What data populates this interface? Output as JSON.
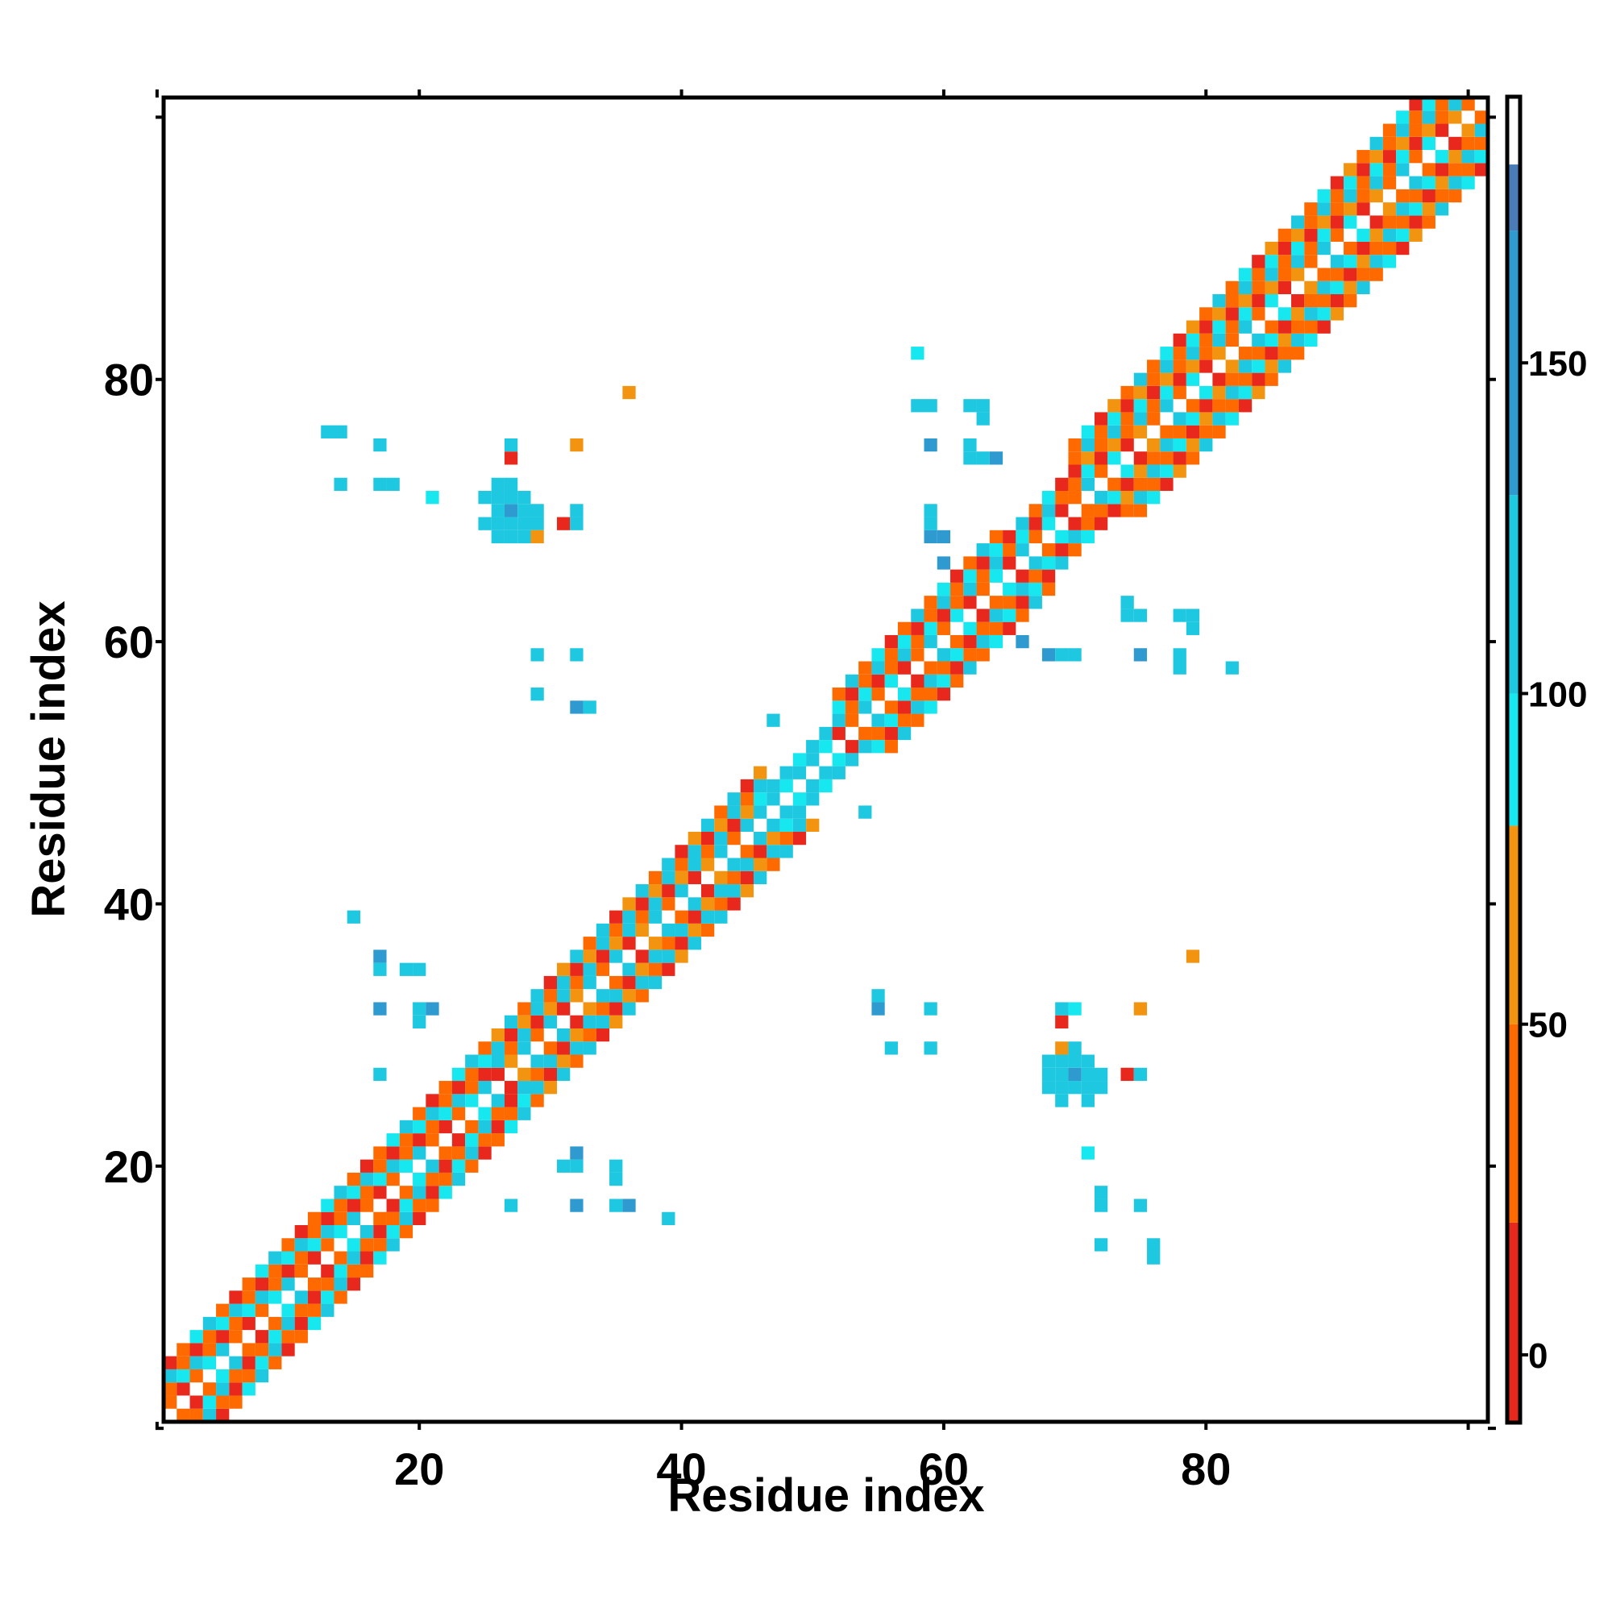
{
  "chart_data": {
    "type": "heatmap",
    "title": "",
    "xlabel": "Residue index",
    "ylabel": "Residue index",
    "xlim": [
      0.5,
      101.5
    ],
    "ylim": [
      0.5,
      101.5
    ],
    "x_ticks": [
      20,
      40,
      60,
      80
    ],
    "x_tick_labels": [
      "20",
      "40",
      "60",
      "80"
    ],
    "y_ticks": [
      20,
      40,
      60,
      80
    ],
    "y_tick_labels": [
      "20",
      "40",
      "60",
      "80"
    ],
    "colorbar": {
      "range": [
        -10,
        190
      ],
      "ticks": [
        0,
        50,
        100,
        150
      ],
      "tick_labels": [
        "0",
        "50",
        "100",
        "150"
      ],
      "bands": [
        {
          "from": -10,
          "to": 20,
          "color": "#e8281c"
        },
        {
          "from": 20,
          "to": 50,
          "color": "#ff6a00"
        },
        {
          "from": 50,
          "to": 80,
          "color": "#f39410"
        },
        {
          "from": 80,
          "to": 100,
          "color": "#17e7ee"
        },
        {
          "from": 100,
          "to": 130,
          "color": "#1ec8e0"
        },
        {
          "from": 130,
          "to": 170,
          "color": "#2f9ad0"
        },
        {
          "from": 170,
          "to": 180,
          "color": "#4a7cb8"
        },
        {
          "from": 180,
          "to": 190,
          "color": "#ffffff"
        }
      ]
    },
    "diagonal_band": {
      "description_value_pattern": "alternating helix band contact angles",
      "segments": [
        {
          "from": 1,
          "to": 26,
          "halfwidth": 4,
          "values": [
            40,
            95,
            115,
            40,
            10
          ]
        },
        {
          "from": 26,
          "to": 46,
          "halfwidth": 4,
          "values": [
            110,
            40,
            115,
            10,
            60
          ]
        },
        {
          "from": 46,
          "to": 52,
          "halfwidth": 2,
          "values": [
            110,
            115,
            95
          ]
        },
        {
          "from": 52,
          "to": 64,
          "halfwidth": 4,
          "values": [
            40,
            115,
            40,
            95,
            10
          ]
        },
        {
          "from": 64,
          "to": 70,
          "halfwidth": 3,
          "values": [
            110,
            40,
            95,
            10
          ]
        },
        {
          "from": 70,
          "to": 101,
          "halfwidth": 5,
          "values": [
            40,
            110,
            40,
            95,
            10,
            60
          ]
        }
      ]
    },
    "off_diagonal_contacts": [
      {
        "x": 26,
        "y": 70,
        "v": 110
      },
      {
        "x": 27,
        "y": 70,
        "v": 150
      },
      {
        "x": 28,
        "y": 70,
        "v": 110
      },
      {
        "x": 25,
        "y": 71,
        "v": 110
      },
      {
        "x": 26,
        "y": 71,
        "v": 110
      },
      {
        "x": 27,
        "y": 71,
        "v": 110
      },
      {
        "x": 28,
        "y": 71,
        "v": 110
      },
      {
        "x": 29,
        "y": 70,
        "v": 110
      },
      {
        "x": 25,
        "y": 69,
        "v": 110
      },
      {
        "x": 26,
        "y": 69,
        "v": 110
      },
      {
        "x": 27,
        "y": 69,
        "v": 110
      },
      {
        "x": 28,
        "y": 69,
        "v": 110
      },
      {
        "x": 29,
        "y": 69,
        "v": 110
      },
      {
        "x": 26,
        "y": 68,
        "v": 110
      },
      {
        "x": 27,
        "y": 68,
        "v": 110
      },
      {
        "x": 28,
        "y": 68,
        "v": 110
      },
      {
        "x": 29,
        "y": 68,
        "v": 60
      },
      {
        "x": 26,
        "y": 72,
        "v": 110
      },
      {
        "x": 27,
        "y": 72,
        "v": 110
      },
      {
        "x": 27,
        "y": 74,
        "v": 10
      },
      {
        "x": 27,
        "y": 75,
        "v": 110
      },
      {
        "x": 32,
        "y": 75,
        "v": 60
      },
      {
        "x": 31,
        "y": 69,
        "v": 10
      },
      {
        "x": 32,
        "y": 69,
        "v": 110
      },
      {
        "x": 32,
        "y": 70,
        "v": 110
      },
      {
        "x": 36,
        "y": 79,
        "v": 60
      },
      {
        "x": 13,
        "y": 76,
        "v": 110
      },
      {
        "x": 14,
        "y": 76,
        "v": 110
      },
      {
        "x": 17,
        "y": 75,
        "v": 110
      },
      {
        "x": 14,
        "y": 72,
        "v": 110
      },
      {
        "x": 17,
        "y": 72,
        "v": 110
      },
      {
        "x": 18,
        "y": 72,
        "v": 110
      },
      {
        "x": 21,
        "y": 71,
        "v": 95
      },
      {
        "x": 29,
        "y": 59,
        "v": 110
      },
      {
        "x": 32,
        "y": 59,
        "v": 110
      },
      {
        "x": 29,
        "y": 56,
        "v": 110
      },
      {
        "x": 32,
        "y": 55,
        "v": 150
      },
      {
        "x": 33,
        "y": 55,
        "v": 110
      },
      {
        "x": 70,
        "y": 26,
        "v": 110
      },
      {
        "x": 70,
        "y": 27,
        "v": 150
      },
      {
        "x": 70,
        "y": 28,
        "v": 110
      },
      {
        "x": 71,
        "y": 25,
        "v": 110
      },
      {
        "x": 71,
        "y": 26,
        "v": 110
      },
      {
        "x": 71,
        "y": 27,
        "v": 110
      },
      {
        "x": 71,
        "y": 28,
        "v": 110
      },
      {
        "x": 70,
        "y": 29,
        "v": 110
      },
      {
        "x": 69,
        "y": 25,
        "v": 110
      },
      {
        "x": 69,
        "y": 26,
        "v": 110
      },
      {
        "x": 69,
        "y": 27,
        "v": 110
      },
      {
        "x": 69,
        "y": 28,
        "v": 110
      },
      {
        "x": 69,
        "y": 29,
        "v": 60
      },
      {
        "x": 68,
        "y": 26,
        "v": 110
      },
      {
        "x": 68,
        "y": 27,
        "v": 110
      },
      {
        "x": 68,
        "y": 28,
        "v": 110
      },
      {
        "x": 72,
        "y": 26,
        "v": 110
      },
      {
        "x": 72,
        "y": 27,
        "v": 110
      },
      {
        "x": 74,
        "y": 27,
        "v": 10
      },
      {
        "x": 75,
        "y": 27,
        "v": 110
      },
      {
        "x": 75,
        "y": 32,
        "v": 60
      },
      {
        "x": 69,
        "y": 31,
        "v": 10
      },
      {
        "x": 69,
        "y": 32,
        "v": 110
      },
      {
        "x": 70,
        "y": 32,
        "v": 95
      },
      {
        "x": 79,
        "y": 36,
        "v": 60
      },
      {
        "x": 71,
        "y": 21,
        "v": 95
      },
      {
        "x": 72,
        "y": 18,
        "v": 110
      },
      {
        "x": 72,
        "y": 17,
        "v": 110
      },
      {
        "x": 75,
        "y": 17,
        "v": 110
      },
      {
        "x": 72,
        "y": 14,
        "v": 110
      },
      {
        "x": 76,
        "y": 14,
        "v": 110
      },
      {
        "x": 76,
        "y": 13,
        "v": 110
      },
      {
        "x": 15,
        "y": 39,
        "v": 110
      },
      {
        "x": 17,
        "y": 36,
        "v": 150
      },
      {
        "x": 17,
        "y": 35,
        "v": 110
      },
      {
        "x": 19,
        "y": 35,
        "v": 110
      },
      {
        "x": 20,
        "y": 35,
        "v": 110
      },
      {
        "x": 17,
        "y": 32,
        "v": 150
      },
      {
        "x": 20,
        "y": 32,
        "v": 110
      },
      {
        "x": 21,
        "y": 32,
        "v": 150
      },
      {
        "x": 20,
        "y": 31,
        "v": 110
      },
      {
        "x": 17,
        "y": 27,
        "v": 110
      },
      {
        "x": 27,
        "y": 17,
        "v": 110
      },
      {
        "x": 31,
        "y": 20,
        "v": 110
      },
      {
        "x": 32,
        "y": 20,
        "v": 110
      },
      {
        "x": 32,
        "y": 21,
        "v": 150
      },
      {
        "x": 35,
        "y": 19,
        "v": 110
      },
      {
        "x": 35,
        "y": 20,
        "v": 110
      },
      {
        "x": 32,
        "y": 17,
        "v": 150
      },
      {
        "x": 35,
        "y": 17,
        "v": 110
      },
      {
        "x": 36,
        "y": 17,
        "v": 150
      },
      {
        "x": 39,
        "y": 16,
        "v": 110
      },
      {
        "x": 55,
        "y": 33,
        "v": 110
      },
      {
        "x": 55,
        "y": 32,
        "v": 150
      },
      {
        "x": 59,
        "y": 32,
        "v": 110
      },
      {
        "x": 56,
        "y": 29,
        "v": 110
      },
      {
        "x": 59,
        "y": 29,
        "v": 110
      },
      {
        "x": 58,
        "y": 82,
        "v": 95
      },
      {
        "x": 58,
        "y": 78,
        "v": 110
      },
      {
        "x": 59,
        "y": 78,
        "v": 110
      },
      {
        "x": 62,
        "y": 78,
        "v": 110
      },
      {
        "x": 63,
        "y": 78,
        "v": 110
      },
      {
        "x": 63,
        "y": 77,
        "v": 110
      },
      {
        "x": 59,
        "y": 75,
        "v": 150
      },
      {
        "x": 62,
        "y": 75,
        "v": 110
      },
      {
        "x": 62,
        "y": 74,
        "v": 110
      },
      {
        "x": 63,
        "y": 74,
        "v": 110
      },
      {
        "x": 64,
        "y": 74,
        "v": 150
      },
      {
        "x": 59,
        "y": 70,
        "v": 110
      },
      {
        "x": 59,
        "y": 69,
        "v": 110
      },
      {
        "x": 59,
        "y": 68,
        "v": 150
      },
      {
        "x": 60,
        "y": 68,
        "v": 150
      },
      {
        "x": 60,
        "y": 66,
        "v": 150
      },
      {
        "x": 75,
        "y": 62,
        "v": 110
      },
      {
        "x": 74,
        "y": 62,
        "v": 110
      },
      {
        "x": 74,
        "y": 63,
        "v": 110
      },
      {
        "x": 78,
        "y": 62,
        "v": 110
      },
      {
        "x": 79,
        "y": 62,
        "v": 110
      },
      {
        "x": 79,
        "y": 61,
        "v": 110
      },
      {
        "x": 68,
        "y": 59,
        "v": 150
      },
      {
        "x": 69,
        "y": 59,
        "v": 110
      },
      {
        "x": 70,
        "y": 59,
        "v": 110
      },
      {
        "x": 75,
        "y": 59,
        "v": 150
      },
      {
        "x": 78,
        "y": 59,
        "v": 110
      },
      {
        "x": 78,
        "y": 58,
        "v": 110
      },
      {
        "x": 82,
        "y": 58,
        "v": 110
      },
      {
        "x": 66,
        "y": 60,
        "v": 150
      },
      {
        "x": 47,
        "y": 54,
        "v": 110
      },
      {
        "x": 54,
        "y": 47,
        "v": 110
      }
    ]
  }
}
